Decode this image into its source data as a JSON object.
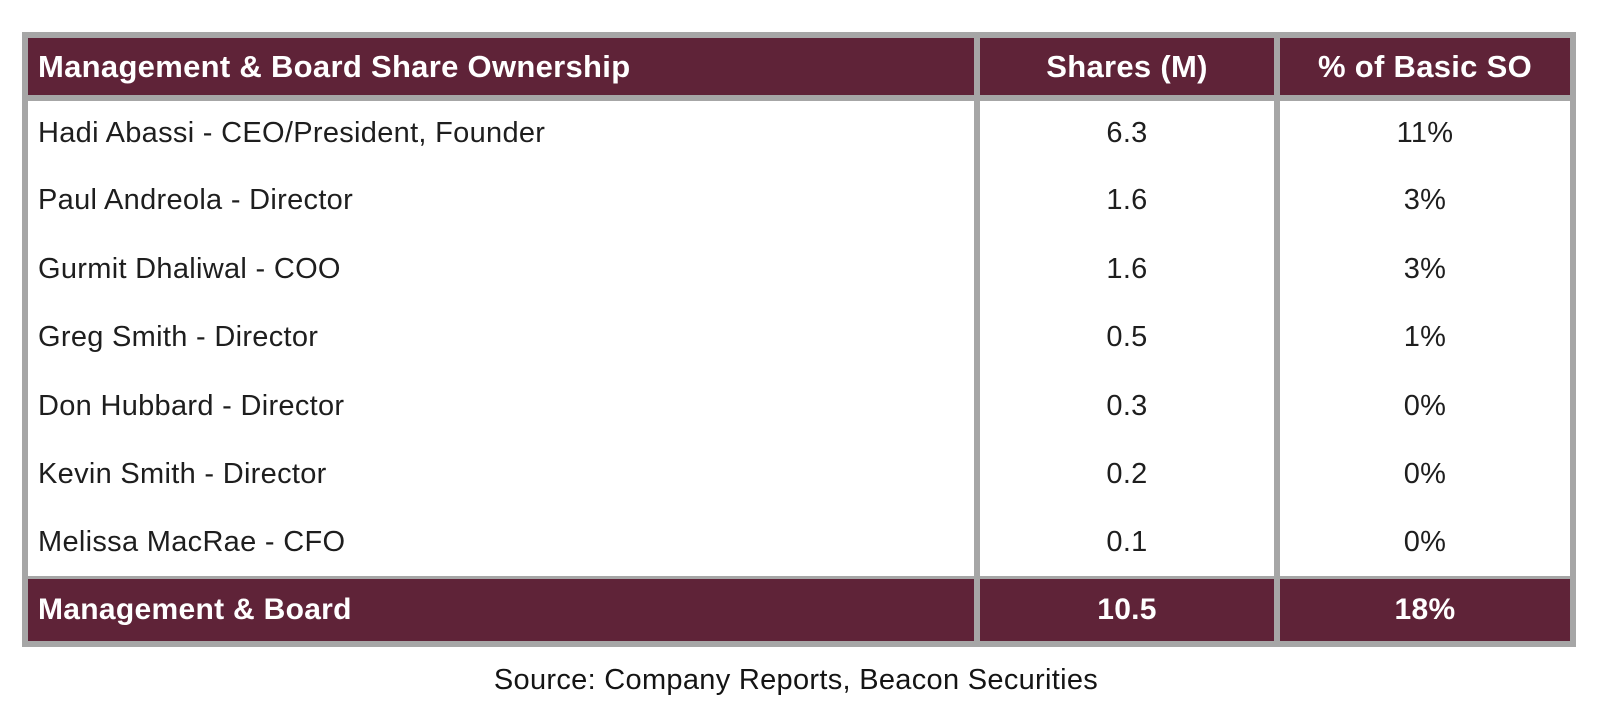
{
  "colors": {
    "accent-maroon": "#5f2338",
    "border-gray": "#a6a6a6",
    "text-dark": "#1e1e1e",
    "text-light": "#ffffff"
  },
  "chart_data": {
    "type": "table",
    "title": "Management & Board Share Ownership",
    "columns": [
      "Management & Board Share Ownership",
      "Shares (M)",
      "% of Basic SO"
    ],
    "rows": [
      {
        "name": "Hadi Abassi - CEO/President, Founder",
        "shares": "6.3",
        "pct": "11%"
      },
      {
        "name": "Paul Andreola - Director",
        "shares": "1.6",
        "pct": "3%"
      },
      {
        "name": "Gurmit Dhaliwal - COO",
        "shares": "1.6",
        "pct": "3%"
      },
      {
        "name": "Greg Smith - Director",
        "shares": "0.5",
        "pct": "1%"
      },
      {
        "name": "Don Hubbard - Director",
        "shares": "0.3",
        "pct": "0%"
      },
      {
        "name": "Kevin Smith - Director",
        "shares": "0.2",
        "pct": "0%"
      },
      {
        "name": "Melissa MacRae - CFO",
        "shares": "0.1",
        "pct": "0%"
      }
    ],
    "total_row": {
      "name": "Management & Board",
      "shares": "10.5",
      "pct": "18%"
    },
    "source": "Source: Company Reports, Beacon Securities"
  }
}
